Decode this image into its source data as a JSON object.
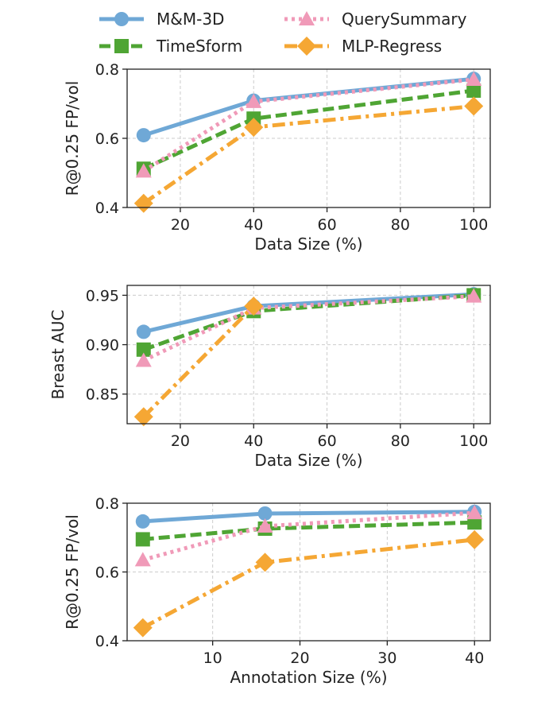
{
  "chart_data": [
    {
      "type": "line",
      "xlabel": "Data Size (%)",
      "ylabel": "R@0.25 FP/vol",
      "x": [
        10,
        40,
        100
      ],
      "xlim": [
        5.5,
        104.5
      ],
      "ylim": [
        0.4,
        0.8
      ],
      "xticks": [
        20,
        40,
        60,
        80,
        100
      ],
      "yticks": [
        0.4,
        0.6,
        0.8
      ],
      "ytick_labels": [
        "0.4",
        "0.6",
        "0.8"
      ],
      "grid": true,
      "series": [
        {
          "name": "M&M-3D",
          "values": [
            0.609,
            0.709,
            0.772
          ]
        },
        {
          "name": "TimeSform",
          "values": [
            0.512,
            0.657,
            0.738
          ]
        },
        {
          "name": "QuerySummary",
          "values": [
            0.505,
            0.706,
            0.77
          ]
        },
        {
          "name": "MLP-Regress",
          "values": [
            0.412,
            0.632,
            0.693
          ]
        }
      ]
    },
    {
      "type": "line",
      "xlabel": "Data Size (%)",
      "ylabel": "Breast AUC",
      "x": [
        10,
        40,
        100
      ],
      "xlim": [
        5.5,
        104.5
      ],
      "ylim": [
        0.82,
        0.96
      ],
      "xticks": [
        20,
        40,
        60,
        80,
        100
      ],
      "yticks": [
        0.85,
        0.9,
        0.95
      ],
      "ytick_labels": [
        "0.85",
        "0.90",
        "0.95"
      ],
      "grid": true,
      "series": [
        {
          "name": "M&M-3D",
          "values": [
            0.913,
            0.939,
            0.951
          ]
        },
        {
          "name": "TimeSform",
          "values": [
            0.895,
            0.934,
            0.95
          ]
        },
        {
          "name": "QuerySummary",
          "values": [
            0.884,
            0.937,
            0.949
          ]
        },
        {
          "name": "MLP-Regress",
          "values": [
            0.827,
            0.939,
            null
          ]
        }
      ]
    },
    {
      "type": "line",
      "xlabel": "Annotation Size (%)",
      "ylabel": "R@0.25 FP/vol",
      "x": [
        2,
        16,
        40
      ],
      "xlim": [
        0.2,
        41.8
      ],
      "ylim": [
        0.4,
        0.8
      ],
      "xticks": [
        10,
        20,
        30,
        40
      ],
      "yticks": [
        0.4,
        0.6,
        0.8
      ],
      "ytick_labels": [
        "0.4",
        "0.6",
        "0.8"
      ],
      "grid": true,
      "series": [
        {
          "name": "M&M-3D",
          "values": [
            0.747,
            0.77,
            0.775
          ]
        },
        {
          "name": "TimeSform",
          "values": [
            0.695,
            0.726,
            0.744
          ]
        },
        {
          "name": "QuerySummary",
          "values": [
            0.635,
            0.733,
            0.772
          ]
        },
        {
          "name": "MLP-Regress",
          "values": [
            0.438,
            0.628,
            0.694
          ]
        }
      ]
    }
  ],
  "legend": {
    "placement": "top",
    "entries": [
      {
        "name": "M&M-3D",
        "color": "#6fa8d6",
        "marker": "circle",
        "dash": "solid"
      },
      {
        "name": "TimeSform",
        "color": "#4fa534",
        "marker": "square",
        "dash": "dashed"
      },
      {
        "name": "QuerySummary",
        "color": "#f09ab8",
        "marker": "triangle",
        "dash": "dotted"
      },
      {
        "name": "MLP-Regress",
        "color": "#f5a734",
        "marker": "diamond",
        "dash": "dashdot"
      }
    ]
  }
}
